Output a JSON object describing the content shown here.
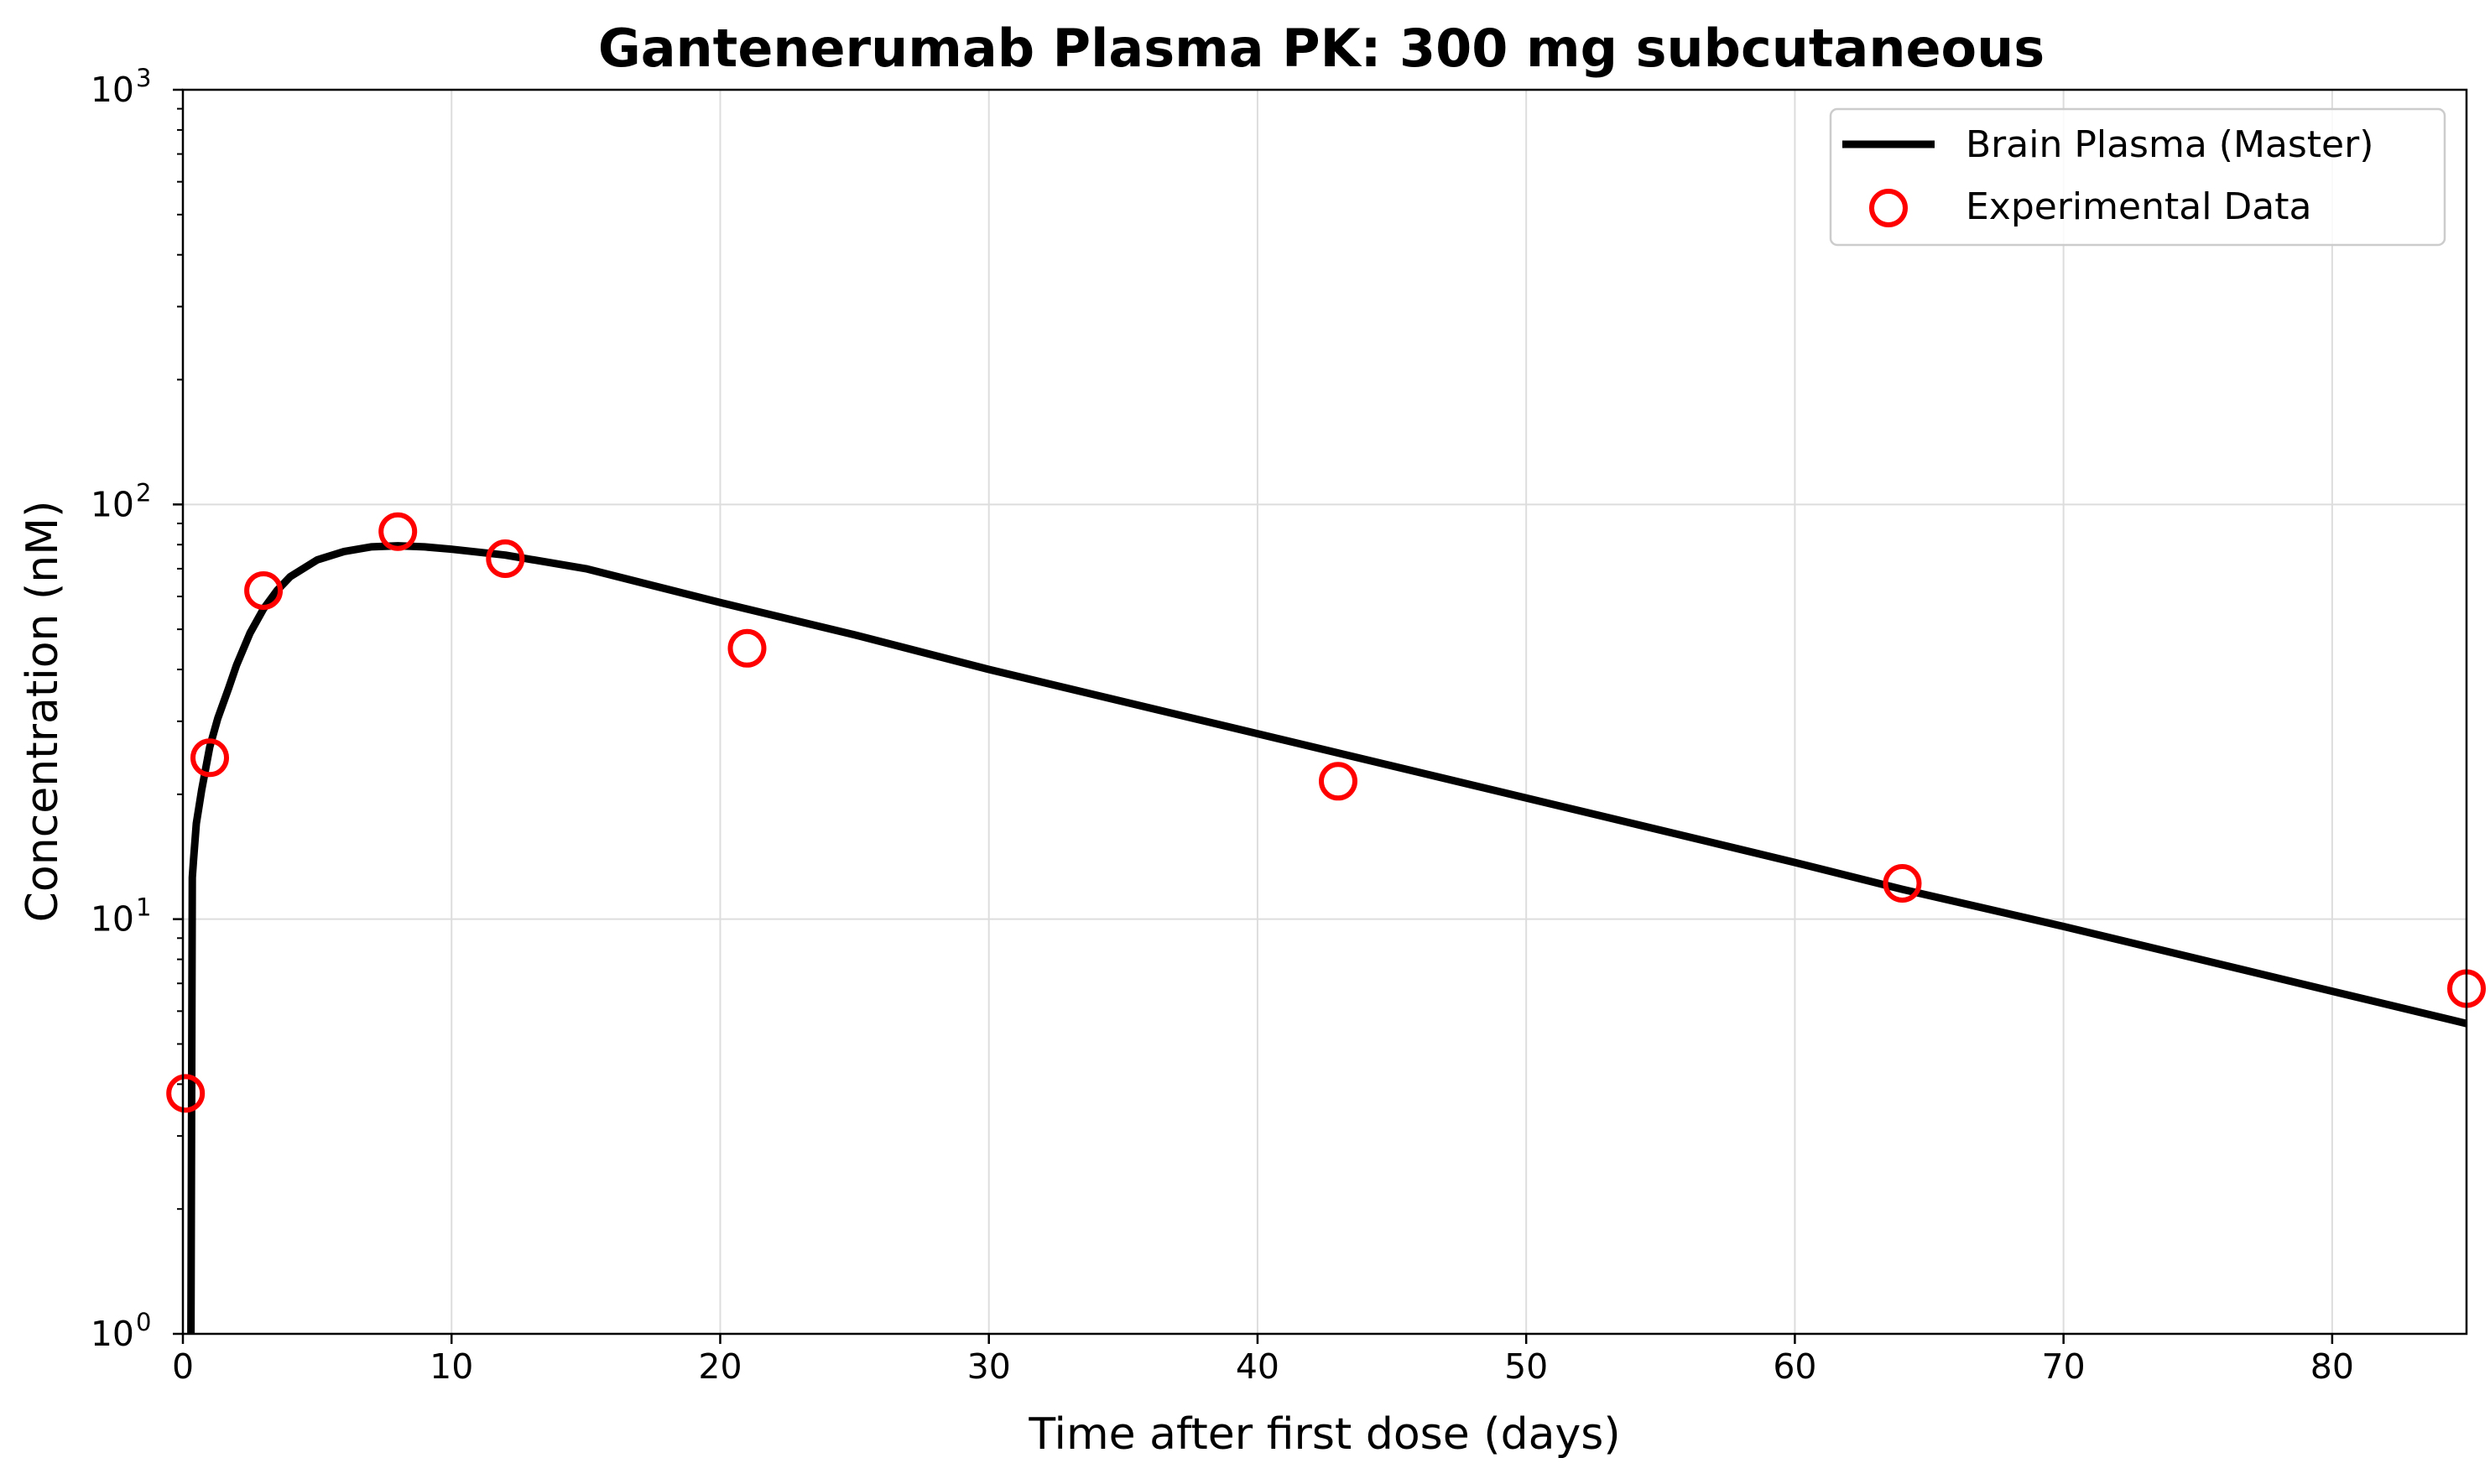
{
  "chart_data": {
    "type": "line",
    "title": "Gantenerumab Plasma PK: 300 mg subcutaneous",
    "xlabel": "Time after first dose (days)",
    "ylabel": "Concentration (nM)",
    "xlim": [
      0,
      85
    ],
    "ylim": [
      1,
      1000
    ],
    "yscale": "log",
    "grid": true,
    "legend_position": "top-right",
    "x_ticks": [
      0,
      10,
      20,
      30,
      40,
      50,
      60,
      70,
      80
    ],
    "y_ticks": [
      {
        "value": 1,
        "base": "10",
        "exp": "0"
      },
      {
        "value": 10,
        "base": "10",
        "exp": "1"
      },
      {
        "value": 100,
        "base": "10",
        "exp": "2"
      },
      {
        "value": 1000,
        "base": "10",
        "exp": "3"
      }
    ],
    "series": [
      {
        "name": "Brain Plasma (Master)",
        "kind": "line",
        "color": "#000000",
        "x": [
          0.3,
          0.35,
          0.4,
          0.5,
          0.7,
          1.0,
          1.3,
          1.7,
          2.0,
          2.5,
          3.0,
          3.5,
          4.0,
          5.0,
          6.0,
          7.0,
          8.0,
          9.0,
          10.0,
          12.0,
          15.0,
          20.0,
          25.0,
          30.0,
          40.0,
          50.0,
          60.0,
          64.0,
          70.0,
          80.0,
          85.0
        ],
        "y": [
          1.0,
          12.6,
          14.0,
          17.0,
          20.5,
          26.0,
          30.5,
          36.0,
          41.0,
          49.0,
          56.0,
          62.0,
          67.0,
          73.5,
          77.0,
          79.0,
          79.5,
          79.0,
          78.0,
          75.5,
          70.0,
          58.0,
          48.5,
          40.0,
          28.0,
          19.6,
          13.7,
          11.8,
          9.6,
          6.7,
          5.6
        ]
      },
      {
        "name": "Experimental Data",
        "kind": "scatter",
        "color": "#ff0000",
        "x": [
          0.1,
          1,
          3,
          8,
          12,
          21,
          43,
          64,
          85
        ],
        "y": [
          3.8,
          24.5,
          62,
          86,
          74,
          45,
          21.5,
          12.2,
          6.8
        ]
      }
    ]
  }
}
